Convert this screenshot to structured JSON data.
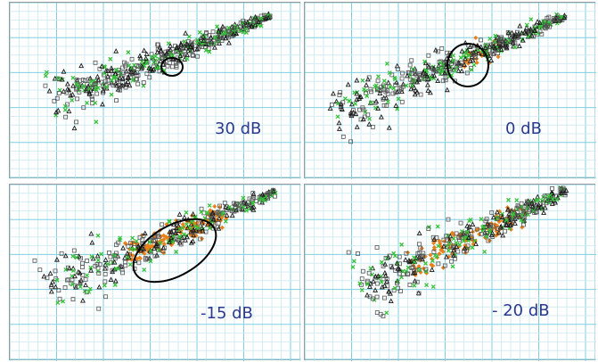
{
  "colors": {
    "grid_minor": "#c9e9f1",
    "grid_major": "#7fcfe0",
    "label": "#2b3a8f",
    "marker_square": "#555555",
    "marker_triangle": "#1a1a1a",
    "marker_green": "#35c13a",
    "marker_orange": "#e8801c",
    "ellipse": "#000000"
  },
  "chart_data": [
    {
      "type": "scatter",
      "label": "30 dB",
      "markers": [
        "square",
        "triangle",
        "green-cross"
      ],
      "highlight": {
        "orange_fraction": 0.0,
        "ellipse": "small-circle"
      }
    },
    {
      "type": "scatter",
      "label": "0 dB",
      "markers": [
        "square",
        "triangle",
        "green-cross",
        "orange"
      ],
      "highlight": {
        "orange_fraction": 0.05,
        "ellipse": "circle"
      }
    },
    {
      "type": "scatter",
      "label": "-15 dB",
      "markers": [
        "square",
        "triangle",
        "green-cross",
        "orange"
      ],
      "highlight": {
        "orange_fraction": 0.25,
        "ellipse": "wide-ellipse"
      }
    },
    {
      "type": "scatter",
      "label": "- 20 dB",
      "markers": [
        "square",
        "triangle",
        "green-cross",
        "orange"
      ],
      "highlight": {
        "orange_fraction": 0.22,
        "ellipse": "none"
      }
    }
  ]
}
